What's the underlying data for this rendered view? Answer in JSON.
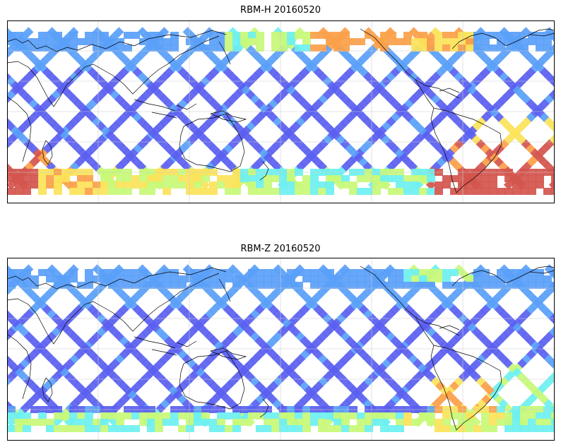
{
  "panels": [
    {
      "title": "RBM-H 20160520",
      "variant": "H"
    },
    {
      "title": "RBM-Z 20160520",
      "variant": "Z"
    }
  ],
  "colormap": [
    "#5a5ff0",
    "#5aa0f8",
    "#6ef0f0",
    "#c8f878",
    "#fbe35a",
    "#fba04a",
    "#d4554e"
  ],
  "coastline_color": "#000000",
  "gridline_color": "#cccccc"
}
